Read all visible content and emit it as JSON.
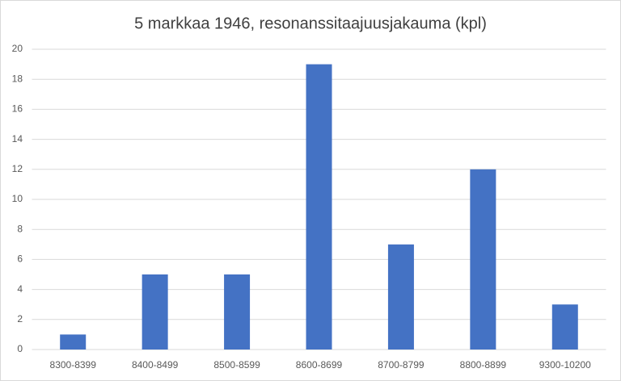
{
  "chart_data": {
    "type": "bar",
    "title": "5 markkaa 1946, resonanssitaajuusjakauma (kpl)",
    "categories": [
      "8300-8399",
      "8400-8499",
      "8500-8599",
      "8600-8699",
      "8700-8799",
      "8800-8899",
      "9300-10200"
    ],
    "values": [
      1,
      5,
      5,
      19,
      7,
      12,
      3
    ],
    "color": "#4472c4",
    "ylim": [
      0,
      20
    ],
    "yticks": [
      0,
      2,
      4,
      6,
      8,
      10,
      12,
      14,
      16,
      18,
      20
    ],
    "grid": true
  }
}
